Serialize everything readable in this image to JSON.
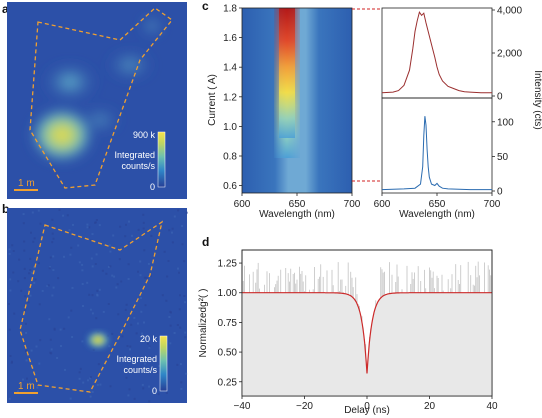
{
  "colors": {
    "map_bg": "#2c50a8",
    "outline": "#f0a030",
    "red_spectrum": "#9b2f2f",
    "blue_spectrum": "#2a6bb0",
    "g2_fit": "#cc2a2a",
    "g2_data": "#c9c9c9",
    "g2_fill": "#e8e8e8",
    "guide": "#d02020"
  },
  "panels": {
    "a": {
      "label": "a",
      "scalebar": "1 m",
      "colorbar_max": "900 k",
      "colorbar_min": "0",
      "colorbar_title_1": "Integrated",
      "colorbar_title_2": "counts/s"
    },
    "b": {
      "label": "b",
      "scalebar": "1 m",
      "colorbar_max": "20 k",
      "colorbar_min": "0",
      "colorbar_title_1": "Integrated",
      "colorbar_title_2": "counts/s"
    },
    "c": {
      "label": "c"
    },
    "d": {
      "label": "d"
    }
  },
  "chart_data": [
    {
      "id": "c-map",
      "type": "heatmap",
      "xlabel": "Wavelength (nm)",
      "ylabel": "Current ( A)",
      "xlim": [
        600,
        700
      ],
      "ylim": [
        0.55,
        1.8
      ],
      "xticks": [
        "600",
        "650",
        "700"
      ],
      "yticks": [
        "0.6",
        "0.8",
        "1.0",
        "1.2",
        "1.4",
        "1.6",
        "1.8"
      ],
      "center_nm": 640,
      "onset_current": 0.75
    },
    {
      "id": "c-spectrum-high",
      "type": "line",
      "xlim": [
        600,
        700
      ],
      "ylim": [
        0,
        4000
      ],
      "yticks": [
        "0",
        "2,000",
        "4,000"
      ],
      "x": [
        600,
        610,
        615,
        620,
        625,
        628,
        630,
        632,
        634,
        636,
        638,
        640,
        642,
        644,
        646,
        648,
        650,
        652,
        655,
        660,
        665,
        670,
        675,
        680,
        690,
        700
      ],
      "y": [
        150,
        180,
        250,
        500,
        1200,
        2200,
        3000,
        3500,
        3900,
        3750,
        3850,
        3400,
        3000,
        2600,
        2200,
        1800,
        1350,
        1000,
        700,
        450,
        350,
        250,
        200,
        180,
        150,
        150
      ]
    },
    {
      "id": "c-spectrum-low",
      "type": "line",
      "xlim": [
        600,
        700
      ],
      "ylim": [
        0,
        130
      ],
      "yticks": [
        "0",
        "50",
        "100"
      ],
      "x": [
        600,
        620,
        630,
        635,
        637,
        638,
        639,
        640,
        641,
        642,
        643,
        645,
        648,
        650,
        652,
        655,
        660,
        680,
        700
      ],
      "y": [
        2,
        3,
        4,
        10,
        35,
        80,
        108,
        95,
        60,
        35,
        20,
        10,
        8,
        11,
        7,
        4,
        3,
        2,
        2
      ]
    },
    {
      "id": "c-right-axis",
      "ylabel": "Intensity (cts)",
      "xlabel": "Wavelength (nm)",
      "xticks": [
        "600",
        "650",
        "700"
      ]
    },
    {
      "id": "d-g2",
      "type": "line",
      "xlabel": "Delay (ns)",
      "ylabel": "Normalizedg²( )",
      "xlim": [
        -40,
        40
      ],
      "ylim": [
        0.13,
        1.36
      ],
      "xticks": [
        "−40",
        "−20",
        "0",
        "20",
        "40"
      ],
      "yticks": [
        "0.25",
        "0.50",
        "0.75",
        "1.00",
        "1.25"
      ],
      "fit": {
        "baseline": 1.0,
        "dip_min": 0.32,
        "decay_ns": 1.6
      }
    }
  ]
}
